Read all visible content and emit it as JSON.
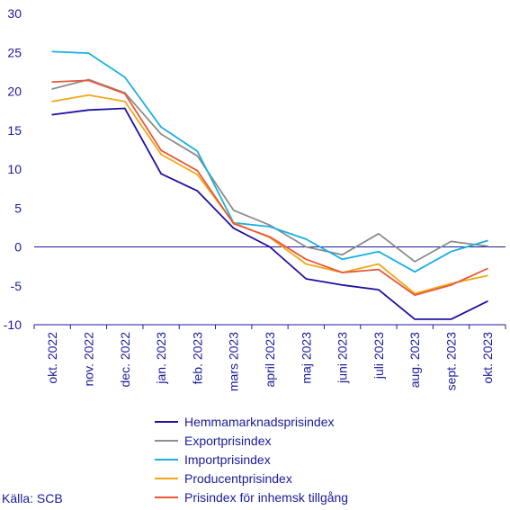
{
  "chart_data": {
    "type": "line",
    "title": "",
    "xlabel": "",
    "ylabel": "",
    "ylim": [
      -10,
      30
    ],
    "yticks": [
      -10,
      -5,
      0,
      5,
      10,
      15,
      20,
      25,
      30
    ],
    "grid": false,
    "legend_position": "bottom",
    "categories": [
      "okt. 2022",
      "nov. 2022",
      "dec. 2022",
      "jan. 2023",
      "feb. 2023",
      "mars 2023",
      "april 2023",
      "maj 2023",
      "juni 2023",
      "juli 2023",
      "aug. 2023",
      "sept. 2023",
      "okt. 2023"
    ],
    "series": [
      {
        "name": "Hemmamarknadsprisindex",
        "color": "#1e0fa0",
        "values": [
          17.0,
          17.6,
          17.8,
          9.4,
          7.2,
          2.4,
          0.0,
          -4.1,
          -4.9,
          -5.5,
          -9.3,
          -9.3,
          -7.0
        ]
      },
      {
        "name": "Exportprisindex",
        "color": "#8c8c8c",
        "values": [
          20.3,
          21.5,
          19.8,
          14.5,
          11.7,
          4.7,
          2.8,
          0.0,
          -1.0,
          1.7,
          -1.9,
          0.7,
          0.1
        ]
      },
      {
        "name": "Importprisindex",
        "color": "#1ab0e0",
        "values": [
          25.1,
          24.9,
          21.8,
          15.4,
          12.3,
          3.1,
          2.6,
          1.0,
          -1.6,
          -0.6,
          -3.2,
          -0.6,
          0.8
        ]
      },
      {
        "name": "Producentprisindex",
        "color": "#f0a818",
        "values": [
          18.7,
          19.5,
          18.7,
          11.9,
          9.3,
          3.1,
          1.2,
          -2.2,
          -3.3,
          -2.2,
          -6.0,
          -4.7,
          -3.7
        ]
      },
      {
        "name": "Prisindex för inhemsk tillgång",
        "color": "#e8583a",
        "values": [
          21.2,
          21.4,
          19.7,
          12.4,
          9.8,
          3.0,
          1.3,
          -1.6,
          -3.3,
          -2.9,
          -6.2,
          -4.9,
          -2.8
        ]
      }
    ]
  },
  "source": "Källa: SCB"
}
